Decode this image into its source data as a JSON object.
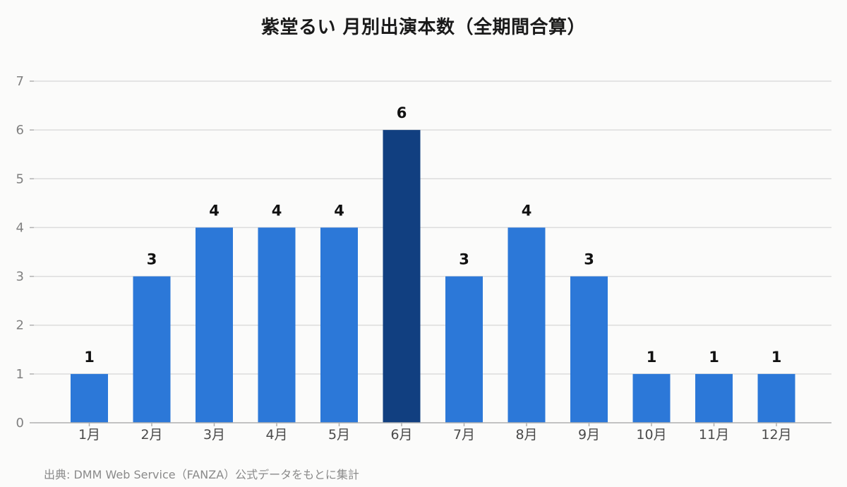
{
  "chart_data": {
    "type": "bar",
    "title": "紫堂るい 月別出演本数（全期間合算）",
    "categories": [
      "1月",
      "2月",
      "3月",
      "4月",
      "5月",
      "6月",
      "7月",
      "8月",
      "9月",
      "10月",
      "11月",
      "12月"
    ],
    "values": [
      1,
      3,
      4,
      4,
      4,
      6,
      3,
      4,
      3,
      1,
      1,
      1
    ],
    "highlight_index": 5,
    "ylim": [
      0,
      7
    ],
    "yticks": [
      0,
      1,
      2,
      3,
      4,
      5,
      6,
      7
    ],
    "grid": true,
    "data_labels": true,
    "colors": {
      "bar": "#2c78d8",
      "highlight": "#113f80",
      "grid": "#dcdcdc",
      "axis": "#b0b0b0"
    }
  },
  "source_note": "出典: DMM Web Service（FANZA）公式データをもとに集計"
}
